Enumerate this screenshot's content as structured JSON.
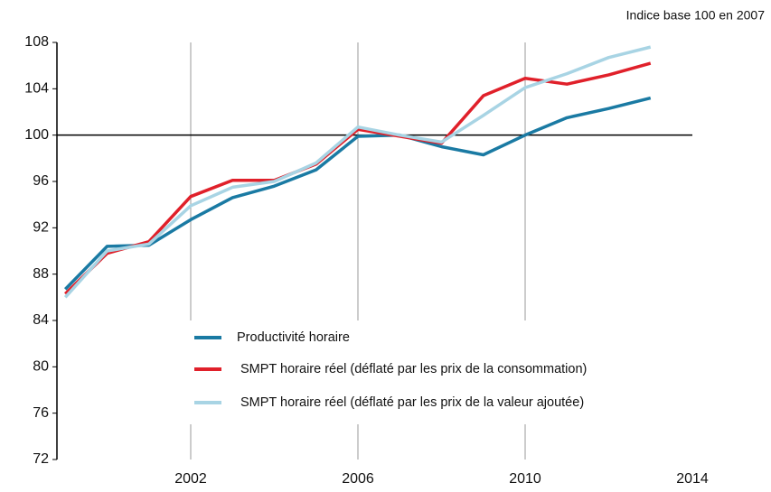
{
  "chart_data": {
    "type": "line",
    "subtitle": "Indice base 100 en 2007",
    "x": [
      1999,
      2000,
      2001,
      2002,
      2003,
      2004,
      2005,
      2006,
      2007,
      2008,
      2009,
      2010,
      2011,
      2012,
      2013
    ],
    "series": [
      {
        "name": "Productivité horaire",
        "color": "#1a7aa3",
        "values": [
          86.7,
          90.4,
          90.5,
          92.7,
          94.6,
          95.6,
          97.0,
          99.9,
          100.0,
          99.0,
          98.3,
          100.0,
          101.5,
          102.3,
          103.2
        ]
      },
      {
        "name": "SMPT horaire réel (déflaté par les prix de la consommation)",
        "color": "#e0202a",
        "values": [
          86.3,
          89.8,
          90.8,
          94.7,
          96.1,
          96.1,
          97.5,
          100.5,
          99.9,
          99.3,
          103.4,
          104.9,
          104.4,
          105.2,
          106.2
        ]
      },
      {
        "name": "SMPT horaire réel (déflaté par les prix de la valeur ajoutée)",
        "color": "#a8d4e4",
        "values": [
          86.0,
          90.0,
          90.6,
          93.9,
          95.5,
          96.0,
          97.6,
          100.7,
          100.0,
          99.4,
          101.7,
          104.1,
          105.3,
          106.7,
          107.6
        ]
      }
    ],
    "xlim": [
      1998.8,
      2014
    ],
    "xticks": [
      2002,
      2006,
      2010,
      2014
    ],
    "ylim": [
      72,
      108
    ],
    "yticks": [
      72,
      76,
      80,
      84,
      88,
      92,
      96,
      100,
      104,
      108
    ],
    "reference_line": 100,
    "grid": "x",
    "legend": "lower center"
  }
}
